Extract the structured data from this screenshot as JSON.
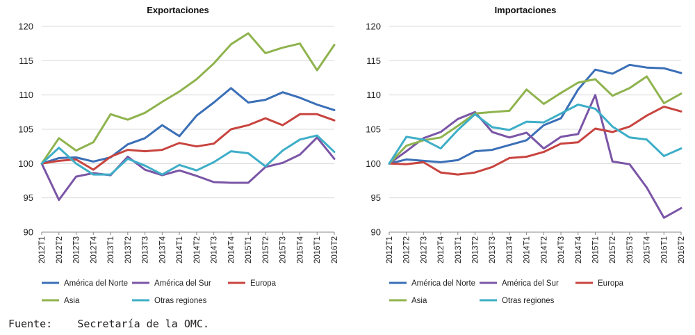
{
  "source": {
    "label": "Fuente:",
    "text": "Secretaría de la OMC."
  },
  "series_colors": {
    "América del Norte": "#3a6fb7",
    "América del Sur": "#7a55a6",
    "Europa": "#c8443f",
    "Asia": "#8fb34e",
    "Otras regiones": "#3eaec7"
  },
  "chart_data": [
    {
      "type": "line",
      "title": "Exportaciones",
      "xlabel": "",
      "ylabel": "",
      "ylim": [
        90,
        120
      ],
      "yticks": [
        90,
        95,
        100,
        105,
        110,
        115,
        120
      ],
      "grid": true,
      "legend": "bottom",
      "categories": [
        "2012T1",
        "2012T2",
        "2012T3",
        "2012T4",
        "2013T1",
        "2013T2",
        "2013T3",
        "2013T4",
        "2014T1",
        "2014T2",
        "2014T3",
        "2014T4",
        "2015T1",
        "2015T2",
        "2015T3",
        "2015T4",
        "2016T1",
        "2016T2"
      ],
      "series": [
        {
          "name": "América del Norte",
          "values": [
            100,
            100.8,
            100.9,
            100.3,
            100.9,
            102.8,
            103.7,
            105.6,
            104.0,
            107.0,
            108.9,
            111.0,
            108.9,
            109.3,
            110.4,
            109.6,
            108.6,
            107.8
          ]
        },
        {
          "name": "América del Sur",
          "values": [
            100,
            94.7,
            98.1,
            98.6,
            98.3,
            101.0,
            99.1,
            98.3,
            99.0,
            98.2,
            97.3,
            97.2,
            97.2,
            99.5,
            100.1,
            101.3,
            103.8,
            100.7
          ]
        },
        {
          "name": "Europa",
          "values": [
            100,
            100.4,
            100.6,
            99.1,
            101.0,
            102.0,
            101.8,
            102.0,
            103.0,
            102.5,
            102.9,
            105.0,
            105.6,
            106.6,
            105.6,
            107.2,
            107.2,
            106.3
          ]
        },
        {
          "name": "Asia",
          "values": [
            100,
            103.7,
            101.9,
            103.1,
            107.2,
            106.4,
            107.4,
            109.0,
            110.5,
            112.3,
            114.6,
            117.4,
            119.0,
            116.1,
            116.9,
            117.5,
            113.6,
            117.3
          ]
        },
        {
          "name": "Otras regiones",
          "values": [
            100,
            102.3,
            100.0,
            98.4,
            98.4,
            100.7,
            99.7,
            98.4,
            99.8,
            99.0,
            100.2,
            101.8,
            101.5,
            99.6,
            101.9,
            103.5,
            104.1,
            101.7
          ]
        }
      ]
    },
    {
      "type": "line",
      "title": "Importaciones",
      "xlabel": "",
      "ylabel": "",
      "ylim": [
        90,
        120
      ],
      "yticks": [
        90,
        95,
        100,
        105,
        110,
        115,
        120
      ],
      "grid": true,
      "legend": "bottom",
      "categories": [
        "2012T1",
        "2012T2",
        "2012T3",
        "2012T4",
        "2013T1",
        "2013T2",
        "2013T3",
        "2013T4",
        "2014T1",
        "2014T2",
        "2014T3",
        "2014T4",
        "2015T1",
        "2015T2",
        "2015T3",
        "2015T4",
        "2016T1",
        "2016T2"
      ],
      "series": [
        {
          "name": "América del Norte",
          "values": [
            100,
            100.6,
            100.4,
            100.2,
            100.5,
            101.8,
            102.0,
            102.7,
            103.4,
            105.6,
            106.6,
            110.8,
            113.7,
            113.1,
            114.4,
            114.0,
            113.9,
            113.2
          ]
        },
        {
          "name": "América del Sur",
          "values": [
            100,
            101.8,
            103.7,
            104.6,
            106.5,
            107.5,
            104.6,
            103.8,
            104.5,
            102.2,
            103.9,
            104.3,
            110.0,
            100.3,
            99.9,
            96.5,
            92.1,
            93.5
          ]
        },
        {
          "name": "Europa",
          "values": [
            100,
            99.9,
            100.2,
            98.7,
            98.4,
            98.7,
            99.5,
            100.8,
            101.0,
            101.7,
            102.9,
            103.1,
            105.1,
            104.6,
            105.4,
            107.0,
            108.3,
            107.6
          ]
        },
        {
          "name": "Asia",
          "values": [
            100,
            102.6,
            103.4,
            103.8,
            105.5,
            107.3,
            107.5,
            107.7,
            110.8,
            108.7,
            110.3,
            111.8,
            112.3,
            109.9,
            111.0,
            112.7,
            108.8,
            110.2
          ]
        },
        {
          "name": "Otras regiones",
          "values": [
            100,
            103.9,
            103.5,
            102.2,
            104.9,
            107.2,
            105.3,
            104.9,
            106.1,
            106.0,
            107.3,
            108.6,
            108.0,
            105.4,
            103.8,
            103.5,
            101.1,
            102.2
          ]
        }
      ]
    }
  ]
}
